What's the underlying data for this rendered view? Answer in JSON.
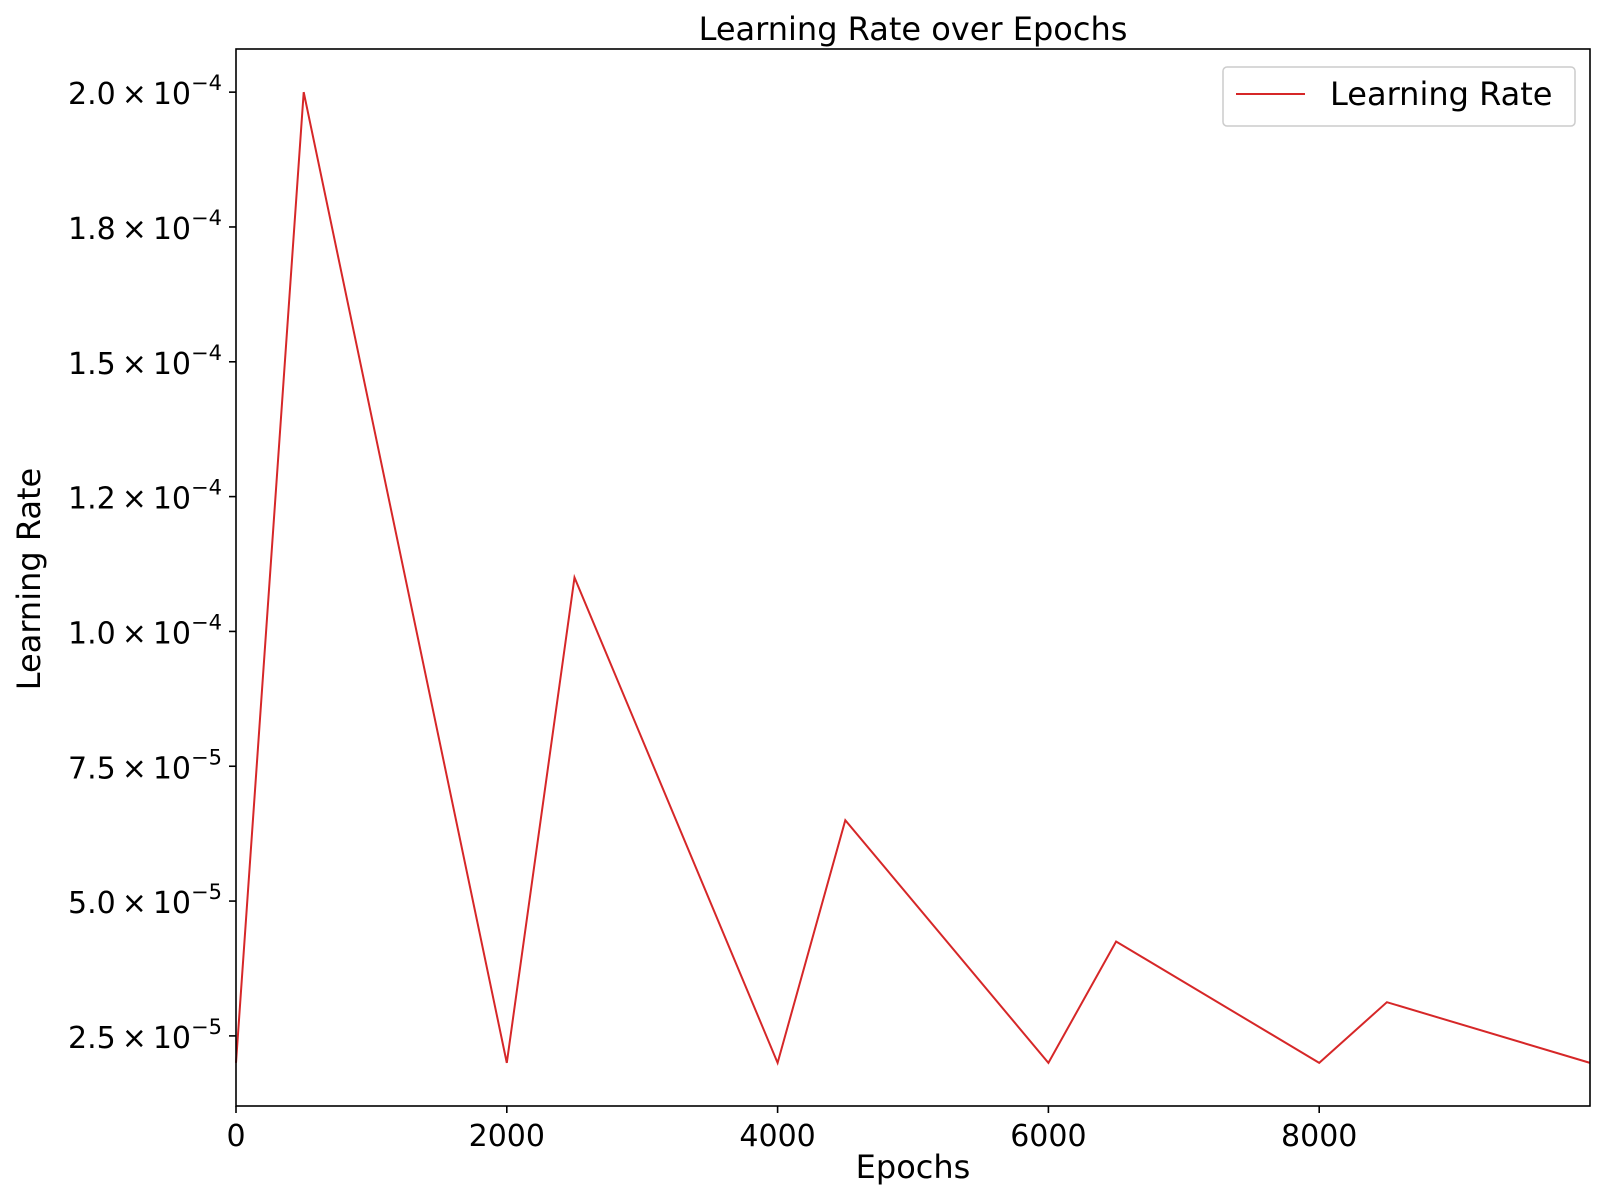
{
  "chart_data": {
    "type": "line",
    "title": "Learning Rate over Epochs",
    "xlabel": "Epochs",
    "ylabel": "Learning Rate",
    "xlim": [
      0,
      10000
    ],
    "ylim": [
      1.2e-05,
      0.000208
    ],
    "x_ticks": [
      {
        "value": 0,
        "label": "0"
      },
      {
        "value": 2000,
        "label": "2000"
      },
      {
        "value": 4000,
        "label": "4000"
      },
      {
        "value": 6000,
        "label": "6000"
      },
      {
        "value": 8000,
        "label": "8000"
      }
    ],
    "y_ticks": [
      {
        "value": 2.5e-05,
        "label": "2.5 × 10⁻⁵",
        "mantissa": "2.5",
        "exponent": "−5"
      },
      {
        "value": 5e-05,
        "label": "5.0 × 10⁻⁵",
        "mantissa": "5.0",
        "exponent": "−5"
      },
      {
        "value": 7.5e-05,
        "label": "7.5 × 10⁻⁵",
        "mantissa": "7.5",
        "exponent": "−5"
      },
      {
        "value": 0.0001,
        "label": "1.0 × 10⁻⁴",
        "mantissa": "1.0",
        "exponent": "−4"
      },
      {
        "value": 0.000125,
        "label": "1.2 × 10⁻⁴",
        "mantissa": "1.2",
        "exponent": "−4"
      },
      {
        "value": 0.00015,
        "label": "1.5 × 10⁻⁴",
        "mantissa": "1.5",
        "exponent": "−4"
      },
      {
        "value": 0.000175,
        "label": "1.8 × 10⁻⁴",
        "mantissa": "1.8",
        "exponent": "−4"
      },
      {
        "value": 0.0002,
        "label": "2.0 × 10⁻⁴",
        "mantissa": "2.0",
        "exponent": "−4"
      }
    ],
    "grid": false,
    "legend_position": "top-right",
    "series": [
      {
        "name": "Learning Rate",
        "color": "#d62728",
        "x": [
          0,
          500,
          2000,
          2500,
          4000,
          4500,
          6000,
          6500,
          8000,
          8500,
          10000
        ],
        "y": [
          2e-05,
          0.0002,
          2e-05,
          0.00011,
          2e-05,
          6.5e-05,
          2e-05,
          4.25e-05,
          2e-05,
          3.125e-05,
          2e-05
        ]
      }
    ]
  }
}
